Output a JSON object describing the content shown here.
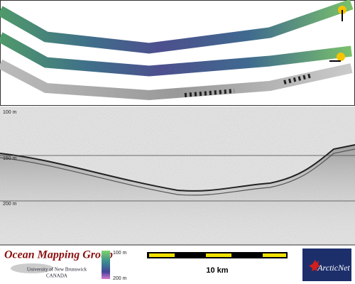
{
  "profile": {
    "depth_labels": [
      "100 m",
      "150 m",
      "200 m"
    ]
  },
  "logo": {
    "title": "Ocean Mapping Group",
    "subtitle": "University of New Brunswick",
    "country": "CANADA"
  },
  "depth_scale": {
    "top": "100 m",
    "bottom": "200 m"
  },
  "scale_bar": {
    "label": "10 km"
  },
  "partner_logo": {
    "name": "ArcticNet"
  }
}
